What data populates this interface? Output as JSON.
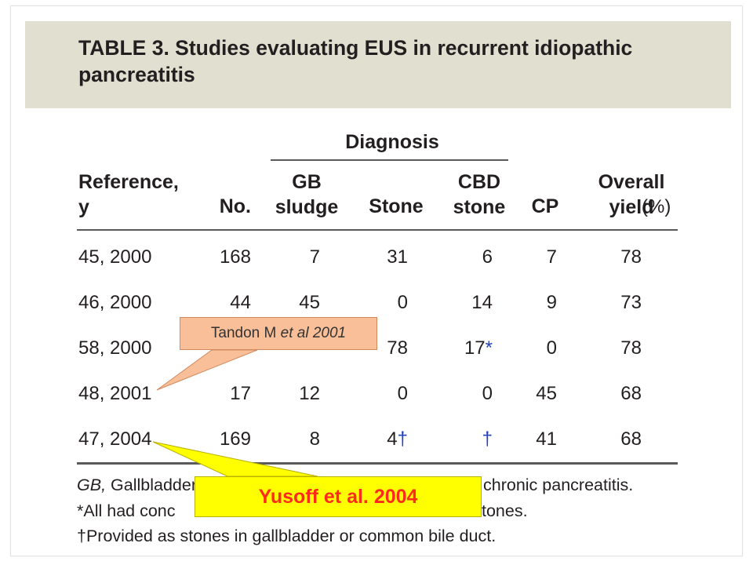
{
  "title": "TABLE 3. Studies evaluating EUS in recurrent idiopathic\npancreatitis",
  "table": {
    "group_header": "Diagnosis",
    "columns": [
      {
        "label": "Reference,\ny"
      },
      {
        "label": "No."
      },
      {
        "label": "GB\nsludge"
      },
      {
        "label": "Stone"
      },
      {
        "label": "CBD\nstone"
      },
      {
        "label": "CP"
      },
      {
        "label": "Overall\nyield",
        "unit": "(%)"
      }
    ],
    "rows": [
      {
        "ref": "45, 2000",
        "no": "168",
        "gb": "7",
        "stone": "31",
        "cbd": "6",
        "cbd_mark": "",
        "cp": "7",
        "yield": "78"
      },
      {
        "ref": "46, 2000",
        "no": "44",
        "gb": "45",
        "stone": "0",
        "cbd": "14",
        "cbd_mark": "",
        "cp": "9",
        "yield": "73"
      },
      {
        "ref": "58, 2000",
        "no": "",
        "gb": "",
        "stone": "78",
        "cbd": "17",
        "cbd_mark": "*",
        "cp": "0",
        "yield": "78"
      },
      {
        "ref": "48, 2001",
        "no": "17",
        "gb": "12",
        "stone": "0",
        "cbd": "0",
        "cbd_mark": "",
        "cp": "45",
        "yield": "68"
      },
      {
        "ref": "47, 2004",
        "no": "169",
        "gb": "8",
        "stone": "4",
        "stone_mark": "†",
        "cbd": "",
        "cbd_mark": "†",
        "cp": "41",
        "yield": "68"
      }
    ]
  },
  "footnotes": {
    "line1_abbrev": "GB,",
    "line1_text_left": " Gallbladder",
    "line1_text_right": "chronic pancreatitis.",
    "line2_left": "*All had conc",
    "line2_right": "tones.",
    "line3": "†Provided as stones in gallbladder or common bile duct."
  },
  "callouts": {
    "tandon": {
      "author": "Tandon M ",
      "etal": "et al 2001"
    },
    "yusoff": {
      "text": "Yusoff et al. 2004"
    }
  },
  "colors": {
    "title_band": "#e0dfd0",
    "tandon_fill": "#f9bf98",
    "yusoff_fill": "#ffff00",
    "yusoff_text": "#ff2a1a",
    "dagger": "#1f3fbf"
  }
}
